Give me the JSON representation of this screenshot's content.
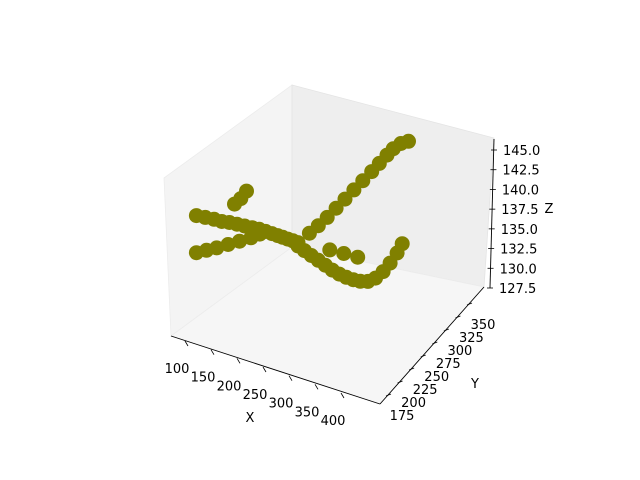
{
  "chart_data": {
    "type": "scatter",
    "projection": "3d",
    "title": "",
    "xlabel": "X",
    "ylabel": "Y",
    "zlabel": "Z",
    "xticks": [
      "100",
      "150",
      "200",
      "250",
      "300",
      "350",
      "400"
    ],
    "yticks": [
      "175",
      "200",
      "225",
      "250",
      "275",
      "300",
      "325",
      "350"
    ],
    "zticks": [
      "127.5",
      "130.0",
      "132.5",
      "135.0",
      "137.5",
      "140.0",
      "142.5",
      "145.0"
    ],
    "xlim": [
      90,
      420
    ],
    "ylim": [
      170,
      360
    ],
    "zlim": [
      127,
      146
    ],
    "grid": false,
    "marker_color": "#808000",
    "pane_color": "#f2f2f2",
    "series": [
      {
        "points": [
          [
            118,
            182,
            141.5
          ],
          [
            128,
            186,
            141.3
          ],
          [
            138,
            190,
            141.1
          ],
          [
            146,
            194,
            140.8
          ],
          [
            152,
            200,
            140.5
          ],
          [
            158,
            206,
            140.1
          ],
          [
            164,
            212,
            139.7
          ],
          [
            170,
            218,
            139.3
          ],
          [
            175,
            224,
            138.9
          ],
          [
            179,
            230,
            138.4
          ],
          [
            183,
            236,
            137.9
          ],
          [
            186,
            242,
            137.4
          ],
          [
            188,
            248,
            136.9
          ],
          [
            190,
            254,
            136.4
          ],
          [
            192,
            260,
            135.9
          ],
          [
            194,
            266,
            135.4
          ],
          [
            120,
            180,
            137.2
          ],
          [
            130,
            186,
            137.4
          ],
          [
            140,
            192,
            137.6
          ],
          [
            150,
            200,
            137.8
          ],
          [
            160,
            208,
            138.0
          ],
          [
            170,
            216,
            138.2
          ],
          [
            178,
            222,
            138.5
          ],
          [
            155,
            205,
            142.5
          ],
          [
            160,
            210,
            143.0
          ],
          [
            165,
            214,
            143.8
          ],
          [
            194,
            266,
            135.0
          ],
          [
            198,
            272,
            134.2
          ],
          [
            203,
            278,
            133.4
          ],
          [
            208,
            284,
            132.6
          ],
          [
            213,
            290,
            131.8
          ],
          [
            218,
            296,
            131.0
          ],
          [
            223,
            302,
            130.3
          ],
          [
            228,
            308,
            129.7
          ],
          [
            233,
            314,
            129.2
          ],
          [
            238,
            320,
            128.8
          ],
          [
            244,
            326,
            128.6
          ],
          [
            250,
            332,
            128.8
          ],
          [
            256,
            338,
            129.4
          ],
          [
            261,
            344,
            130.2
          ],
          [
            266,
            350,
            131.2
          ],
          [
            270,
            354,
            132.2
          ],
          [
            210,
            300,
            133.0
          ],
          [
            222,
            310,
            132.3
          ],
          [
            234,
            320,
            131.6
          ],
          [
            200,
            278,
            136.0
          ],
          [
            206,
            286,
            136.6
          ],
          [
            212,
            294,
            137.3
          ],
          [
            218,
            302,
            138.1
          ],
          [
            224,
            310,
            138.9
          ],
          [
            230,
            318,
            139.7
          ],
          [
            236,
            326,
            140.5
          ],
          [
            242,
            334,
            141.3
          ],
          [
            248,
            340,
            142.1
          ],
          [
            254,
            346,
            142.9
          ],
          [
            260,
            350,
            143.6
          ],
          [
            268,
            354,
            144.2
          ],
          [
            278,
            356,
            144.6
          ]
        ]
      }
    ]
  }
}
